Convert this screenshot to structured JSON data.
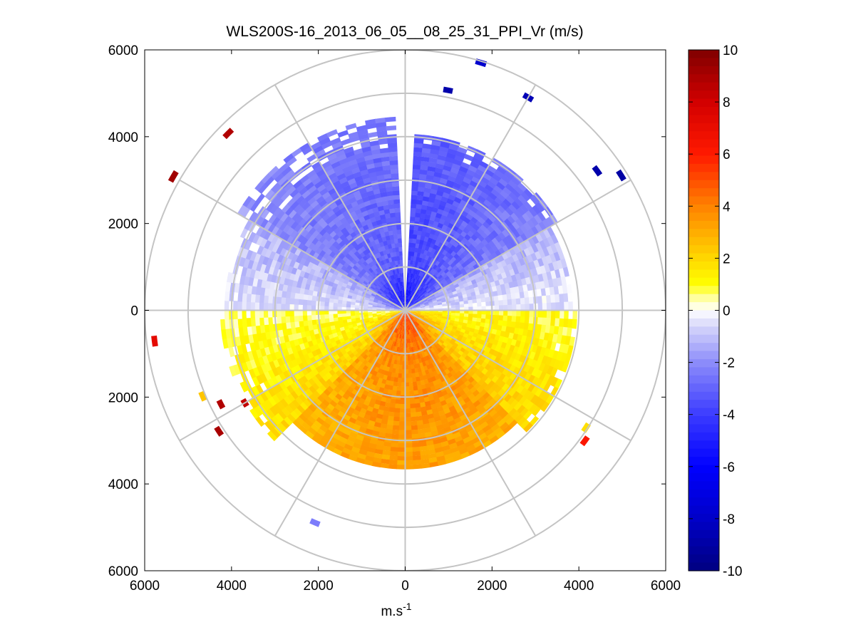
{
  "chart_data": {
    "type": "polar-ppi",
    "title": "WLS200S-16_2013_06_05__08_25_31_PPI_Vr (m/s)",
    "xlabel_main": "m.s",
    "xlabel_sup": "-1",
    "xlim": [
      -6000,
      6000
    ],
    "ylim": [
      -6000,
      6000
    ],
    "x_ticks": [
      "6000",
      "4000",
      "2000",
      "0",
      "2000",
      "4000",
      "6000"
    ],
    "x_tick_values": [
      -6000,
      -4000,
      -2000,
      0,
      2000,
      4000,
      6000
    ],
    "y_ticks": [
      "6000",
      "4000",
      "2000",
      "0",
      "2000",
      "4000",
      "6000"
    ],
    "y_tick_values": [
      6000,
      4000,
      2000,
      0,
      -2000,
      -4000,
      -6000
    ],
    "range_rings_m": [
      1000,
      2000,
      3000,
      4000,
      5000,
      6000
    ],
    "spokes_deg": [
      0,
      30,
      60,
      90,
      120,
      150,
      180,
      210,
      240,
      270,
      300,
      330
    ],
    "colorbar": {
      "min": -10,
      "max": 10,
      "levels": 64,
      "tick_values": [
        10,
        8,
        6,
        4,
        2,
        0,
        -2,
        -4,
        -6,
        -8,
        -10
      ],
      "tick_labels": [
        "10",
        "8",
        "6",
        "4",
        "2",
        "0",
        "-2",
        "-4",
        "-6",
        "-8",
        "-10"
      ]
    },
    "velocity_model": {
      "description": "radial velocity vs azimuth (deg clockwise from north) and range (m)",
      "max_range_m": 4700,
      "sectors": [
        {
          "azimuth_start": 300,
          "azimuth_end": 358,
          "range_max_m": 4400,
          "mean_ms": -2.3
        },
        {
          "azimuth_start": 2,
          "azimuth_end": 60,
          "range_max_m": 4000,
          "mean_ms": -3.8
        },
        {
          "azimuth_start": 60,
          "azimuth_end": 90,
          "range_max_m": 3800,
          "mean_ms": -1.2
        },
        {
          "azimuth_start": 90,
          "azimuth_end": 135,
          "range_max_m": 3900,
          "mean_ms": 1.8
        },
        {
          "azimuth_start": 135,
          "azimuth_end": 225,
          "range_max_m": 3600,
          "mean_ms": 4.0
        },
        {
          "azimuth_start": 225,
          "azimuth_end": 270,
          "range_max_m": 4200,
          "mean_ms": 1.8
        },
        {
          "azimuth_start": 270,
          "azimuth_end": 300,
          "range_max_m": 4100,
          "mean_ms": -0.6
        }
      ],
      "near_core": {
        "positive_center_ms": 5.8,
        "negative_center_ms": -6.5,
        "core_radius_m": 1000
      }
    },
    "outer_echoes": [
      {
        "azimuth": 30,
        "range_m": 5600,
        "value_ms": -8.5
      },
      {
        "azimuth": 11,
        "range_m": 5100,
        "value_ms": -8.8
      },
      {
        "azimuth": 17,
        "range_m": 5900,
        "value_ms": -7.8
      },
      {
        "azimuth": 54,
        "range_m": 5400,
        "value_ms": -8.8
      },
      {
        "azimuth": 58,
        "range_m": 5800,
        "value_ms": -9.0
      },
      {
        "azimuth": 315,
        "range_m": 5700,
        "value_ms": 8.8
      },
      {
        "azimuth": 300,
        "range_m": 6100,
        "value_ms": 9.2
      },
      {
        "azimuth": 263,
        "range_m": 5750,
        "value_ms": 7.2
      },
      {
        "azimuth": 243,
        "range_m": 4700,
        "value_ms": 8.8
      },
      {
        "azimuth": 240,
        "range_m": 4200,
        "value_ms": 8.4
      },
      {
        "azimuth": 247,
        "range_m": 5000,
        "value_ms": 2.4
      },
      {
        "azimuth": 237,
        "range_m": 5050,
        "value_ms": 9.0
      },
      {
        "azimuth": 123,
        "range_m": 4900,
        "value_ms": 1.8
      },
      {
        "azimuth": 126,
        "range_m": 5050,
        "value_ms": 6.2
      },
      {
        "azimuth": 203,
        "range_m": 5250,
        "value_ms": -2.4
      }
    ]
  }
}
